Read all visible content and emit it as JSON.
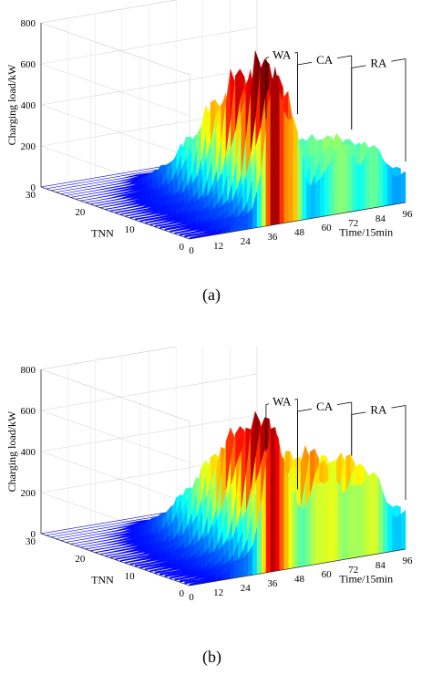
{
  "chart_data": [
    {
      "panel": "(a)",
      "type": "surface",
      "zlabel": "Charging load/kW",
      "ylabel": "TNN",
      "xlabel": "Time/15min",
      "z_ticks": [
        "0",
        "200",
        "400",
        "600",
        "800"
      ],
      "y_ticks": [
        "0",
        "10",
        "20",
        "30"
      ],
      "x_ticks": [
        "0",
        "12",
        "24",
        "36",
        "48",
        "60",
        "72",
        "84",
        "96"
      ],
      "xlim": [
        0,
        96
      ],
      "ylim": [
        0,
        30
      ],
      "zlim": [
        0,
        800
      ],
      "annotations": [
        "WA",
        "CA",
        "RA"
      ],
      "peak_front": [
        [
          0,
          8
        ],
        [
          6,
          10
        ],
        [
          12,
          18
        ],
        [
          16,
          40
        ],
        [
          20,
          60
        ],
        [
          24,
          80
        ],
        [
          28,
          140
        ],
        [
          32,
          320
        ],
        [
          36,
          650
        ],
        [
          38,
          830
        ],
        [
          40,
          800
        ],
        [
          42,
          760
        ],
        [
          44,
          700
        ],
        [
          46,
          650
        ],
        [
          48,
          480
        ],
        [
          50,
          260
        ],
        [
          52,
          190
        ],
        [
          54,
          170
        ],
        [
          56,
          210
        ],
        [
          58,
          260
        ],
        [
          60,
          300
        ],
        [
          64,
          320
        ],
        [
          68,
          340
        ],
        [
          72,
          360
        ],
        [
          76,
          300
        ],
        [
          80,
          320
        ],
        [
          84,
          290
        ],
        [
          88,
          240
        ],
        [
          92,
          180
        ],
        [
          96,
          160
        ]
      ],
      "annotation_brackets": {
        "WA": [
          34,
          48
        ],
        "CA": [
          48,
          72
        ],
        "RA": [
          72,
          96
        ]
      }
    },
    {
      "panel": "(b)",
      "type": "surface",
      "zlabel": "Charging load/kW",
      "ylabel": "TNN",
      "xlabel": "Time/15min",
      "z_ticks": [
        "0",
        "200",
        "400",
        "600",
        "800"
      ],
      "y_ticks": [
        "0",
        "10",
        "20",
        "30"
      ],
      "x_ticks": [
        "0",
        "12",
        "24",
        "36",
        "48",
        "60",
        "72",
        "84",
        "96"
      ],
      "xlim": [
        0,
        96
      ],
      "ylim": [
        0,
        30
      ],
      "zlim": [
        0,
        800
      ],
      "annotations": [
        "WA",
        "CA",
        "RA"
      ],
      "peak_front": [
        [
          0,
          10
        ],
        [
          6,
          12
        ],
        [
          12,
          20
        ],
        [
          16,
          40
        ],
        [
          20,
          70
        ],
        [
          24,
          110
        ],
        [
          28,
          200
        ],
        [
          32,
          400
        ],
        [
          36,
          700
        ],
        [
          38,
          760
        ],
        [
          40,
          740
        ],
        [
          42,
          720
        ],
        [
          44,
          620
        ],
        [
          46,
          480
        ],
        [
          48,
          340
        ],
        [
          50,
          280
        ],
        [
          52,
          300
        ],
        [
          54,
          380
        ],
        [
          56,
          480
        ],
        [
          58,
          560
        ],
        [
          60,
          540
        ],
        [
          62,
          500
        ],
        [
          64,
          450
        ],
        [
          66,
          380
        ],
        [
          68,
          330
        ],
        [
          70,
          380
        ],
        [
          72,
          460
        ],
        [
          74,
          500
        ],
        [
          76,
          480
        ],
        [
          80,
          420
        ],
        [
          84,
          380
        ],
        [
          88,
          300
        ],
        [
          92,
          220
        ],
        [
          96,
          200
        ]
      ],
      "annotation_brackets": {
        "WA": [
          34,
          48
        ],
        "CA": [
          48,
          72
        ],
        "RA": [
          72,
          96
        ]
      }
    }
  ]
}
